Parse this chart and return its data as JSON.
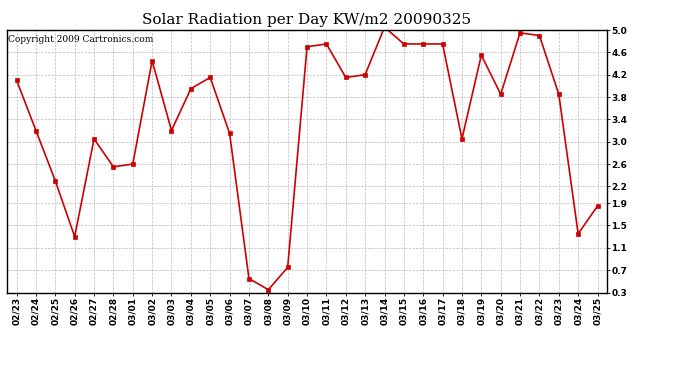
{
  "title": "Solar Radiation per Day KW/m2 20090325",
  "copyright": "Copyright 2009 Cartronics.com",
  "dates": [
    "02/23",
    "02/24",
    "02/25",
    "02/26",
    "02/27",
    "02/28",
    "03/01",
    "03/02",
    "03/03",
    "03/04",
    "03/05",
    "03/06",
    "03/07",
    "03/08",
    "03/09",
    "03/10",
    "03/11",
    "03/12",
    "03/13",
    "03/14",
    "03/15",
    "03/16",
    "03/17",
    "03/18",
    "03/19",
    "03/20",
    "03/21",
    "03/22",
    "03/23",
    "03/24",
    "03/25"
  ],
  "values": [
    4.1,
    3.2,
    2.3,
    1.3,
    3.05,
    2.55,
    2.6,
    4.45,
    3.2,
    3.95,
    4.15,
    3.15,
    0.55,
    0.35,
    0.75,
    4.7,
    4.75,
    4.15,
    4.2,
    5.05,
    4.75,
    4.75,
    4.75,
    3.05,
    4.55,
    3.85,
    4.95,
    4.9,
    3.85,
    1.35,
    1.85
  ],
  "line_color": "#cc0000",
  "marker": "s",
  "marker_size": 3,
  "ylim": [
    0.3,
    5.0
  ],
  "yticks": [
    0.3,
    0.7,
    1.1,
    1.5,
    1.9,
    2.2,
    2.6,
    3.0,
    3.4,
    3.8,
    4.2,
    4.6,
    5.0
  ],
  "background_color": "#ffffff",
  "grid_color": "#bbbbbb",
  "title_fontsize": 11,
  "tick_fontsize": 6.5,
  "copyright_fontsize": 6.5
}
